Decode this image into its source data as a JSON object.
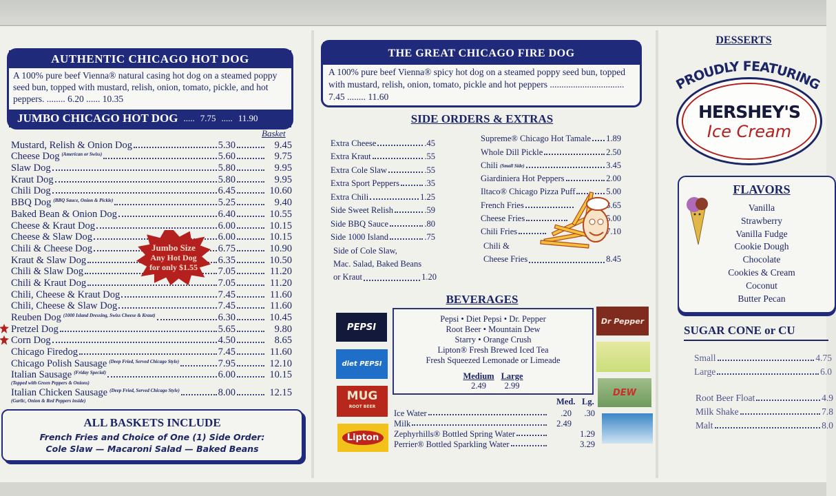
{
  "hotdog": {
    "title": "AUTHENTIC CHICAGO HOT DOG",
    "desc": "A 100% pure beef Vienna® natural casing hot dog on a steamed poppy seed bun, topped with mustard, relish, onion, tomato, pickle, and hot peppers.",
    "price": "6.20",
    "basket": "10.35",
    "jumbo_title": "JUMBO CHICAGO HOT DOG",
    "jumbo_price": "7.75",
    "jumbo_basket": "11.90",
    "basket_header": "Basket"
  },
  "dogs": [
    {
      "name": "Mustard, Relish & Onion Dog",
      "note": "",
      "price": "5.30",
      "basket": "9.45"
    },
    {
      "name": "Cheese Dog",
      "note": "(American or Swiss)",
      "price": "5.60",
      "basket": "9.75"
    },
    {
      "name": "Slaw Dog",
      "note": "",
      "price": "5.80",
      "basket": "9.95"
    },
    {
      "name": "Kraut Dog",
      "note": "",
      "price": "5.80",
      "basket": "9.95"
    },
    {
      "name": "Chili Dog",
      "note": "",
      "price": "6.45",
      "basket": "10.60"
    },
    {
      "name": "BBQ Dog",
      "note": "(BBQ Sauce, Onion & Pickle)",
      "price": "5.25",
      "basket": "9.40"
    },
    {
      "name": "Baked Bean & Onion Dog",
      "note": "",
      "price": "6.40",
      "basket": "10.55"
    },
    {
      "name": "Cheese & Kraut Dog",
      "note": "",
      "price": "6.00",
      "basket": "10.15"
    },
    {
      "name": "Cheese & Slaw Dog",
      "note": "",
      "price": "6.00",
      "basket": "10.15"
    },
    {
      "name": "Chili & Cheese Dog",
      "note": "",
      "price": "6.75",
      "basket": "10.90"
    },
    {
      "name": "Kraut & Slaw Dog",
      "note": "",
      "price": "6.35",
      "basket": "10.50"
    },
    {
      "name": "Chili & Slaw Dog",
      "note": "",
      "price": "7.05",
      "basket": "11.20"
    },
    {
      "name": "Chili & Kraut Dog",
      "note": "",
      "price": "7.05",
      "basket": "11.20"
    },
    {
      "name": "Chili, Cheese & Kraut Dog",
      "note": "",
      "price": "7.45",
      "basket": "11.60"
    },
    {
      "name": "Chili, Cheese & Slaw Dog",
      "note": "",
      "price": "7.45",
      "basket": "11.60"
    },
    {
      "name": "Reuben Dog",
      "note": "(1000 Island Dressing, Swiss Cheese & Kraut)",
      "price": "6.30",
      "basket": "10.45"
    },
    {
      "name": "Pretzel Dog",
      "note": "",
      "price": "5.65",
      "basket": "9.80",
      "new": true
    },
    {
      "name": "Corn Dog",
      "note": "",
      "price": "4.50",
      "basket": "8.65",
      "new": true
    },
    {
      "name": "Chicago Firedog",
      "note": "",
      "price": "7.45",
      "basket": "11.60"
    },
    {
      "name": "Chicago Polish Sausage",
      "note": "(Deep Fried, Served Chicago Style)",
      "price": "7.95",
      "basket": "12.10"
    },
    {
      "name": "Italian Sausage",
      "note": "(Friday Special)",
      "price": "6.00",
      "basket": "10.15",
      "sub": "(Topped with Green Peppers & Onions)"
    },
    {
      "name": "Italian Chicken Sausage",
      "note": "(Deep Fried, Served Chicago Style)",
      "price": "8.00",
      "basket": "12.15",
      "sub": "(Garlic, Onion & Red Peppers inside)"
    }
  ],
  "jumbo_burst": {
    "line1": "Jumbo Size",
    "line2": "Any Hot Dog",
    "line3": "for only $1.55"
  },
  "baskets": {
    "title": "ALL BASKETS INCLUDE",
    "line1": "French Fries and Choice of One (1) Side Order:",
    "line2": "Cole Slaw — Macaroni Salad — Baked Beans"
  },
  "firedog": {
    "title": "THE GREAT CHICAGO FIRE DOG",
    "desc": "A 100% pure beef Vienna® spicy hot dog on a steamed poppy seed bun, topped with mustard, relish, onion, tomato, pickle and hot peppers",
    "price": "7.45",
    "basket": "11.60"
  },
  "sides": {
    "title": "SIDE ORDERS & EXTRAS",
    "left": [
      {
        "name": "Extra Cheese",
        "price": ".45"
      },
      {
        "name": "Extra Kraut",
        "price": ".55"
      },
      {
        "name": "Extra Cole Slaw",
        "price": ".55"
      },
      {
        "name": "Extra Sport Peppers",
        "price": ".35"
      },
      {
        "name": "Extra Chili",
        "price": "1.25"
      },
      {
        "name": "Side Sweet Relish",
        "price": ".59"
      },
      {
        "name": "Side BBQ Sauce",
        "price": ".80"
      },
      {
        "name": "Side 1000 Island",
        "price": ".75"
      }
    ],
    "combo_line1": "Side of Cole Slaw,",
    "combo_line2": "Mac. Salad, Baked Beans",
    "combo_line3": "or Kraut",
    "combo_price": "1.20",
    "right": [
      {
        "name": "Supreme® Chicago Hot Tamale",
        "note": "",
        "price": "1.89"
      },
      {
        "name": "Whole Dill Pickle",
        "note": "",
        "price": "2.50"
      },
      {
        "name": "Chili",
        "note": "(Small Side)",
        "price": "3.45"
      },
      {
        "name": "Giardiniera Hot Peppers",
        "note": "",
        "price": "2.00"
      },
      {
        "name": "Iltaco® Chicago Pizza Puff",
        "note": "",
        "price": "5.00"
      },
      {
        "name": "French Fries",
        "note": "",
        "price": "3.65"
      },
      {
        "name": "Cheese Fries",
        "note": "",
        "price": "5.00"
      },
      {
        "name": "Chili Fries",
        "note": "",
        "price": "7.10"
      }
    ],
    "chili_cheese_line1": "Chili &",
    "chili_cheese_line2": "Cheese Fries",
    "chili_cheese_price": "8.45"
  },
  "beverages": {
    "title": "BEVERAGES",
    "fountain": [
      "Pepsi • Diet Pepsi • Dr. Pepper",
      "Root Beer • Mountain Dew",
      "Starry • Orange Crush",
      "Lipton® Fresh Brewed Iced Tea",
      "Fresh Squeezed Lemonade or Limeade"
    ],
    "medium_label": "Medium",
    "large_label": "Large",
    "medium_price": "2.49",
    "large_price": "2.99",
    "med_header": "Med.",
    "lg_header": "Lg.",
    "items": [
      {
        "name": "Ice Water",
        "med": ".20",
        "lg": ".30"
      },
      {
        "name": "Milk",
        "med": "2.49",
        "lg": ""
      },
      {
        "name": "Zephyrhills® Bottled Spring Water",
        "med": "",
        "lg": "1.29"
      },
      {
        "name": "Perrier® Bottled Sparkling Water",
        "med": "",
        "lg": "3.29"
      }
    ],
    "logos": {
      "pepsi": "PEPSI",
      "diet_pepsi": "diet PEPSI",
      "mug": "MUG",
      "mug_sub": "ROOT BEER",
      "lipton": "Lipton",
      "dr_pepper": "Dr Pepper",
      "dew": "DEW"
    }
  },
  "desserts": {
    "title": "DESSERTS",
    "featuring": "PROUDLY FEATURING",
    "brand": "HERSHEY'S",
    "brand_sub": "Ice Cream",
    "flavors_title": "FLAVORS",
    "flavors": [
      "Vanilla",
      "Strawberry",
      "Vanilla Fudge",
      "Cookie Dough",
      "Chocolate",
      "Cookies & Cream",
      "Coconut",
      "Butter Pecan"
    ],
    "cone_title": "SUGAR CONE or CU",
    "cone_items": [
      {
        "name": "Small",
        "price": "4.75"
      },
      {
        "name": "Large",
        "price": "6.0"
      }
    ],
    "other_items": [
      {
        "name": "Root Beer Float",
        "price": "4.9"
      },
      {
        "name": "Milk Shake",
        "price": "7.8"
      },
      {
        "name": "Malt",
        "price": "8.0"
      }
    ]
  },
  "colors": {
    "navy": "#1f2a7a",
    "red": "#b3201e",
    "paper": "#f1f1ec"
  }
}
